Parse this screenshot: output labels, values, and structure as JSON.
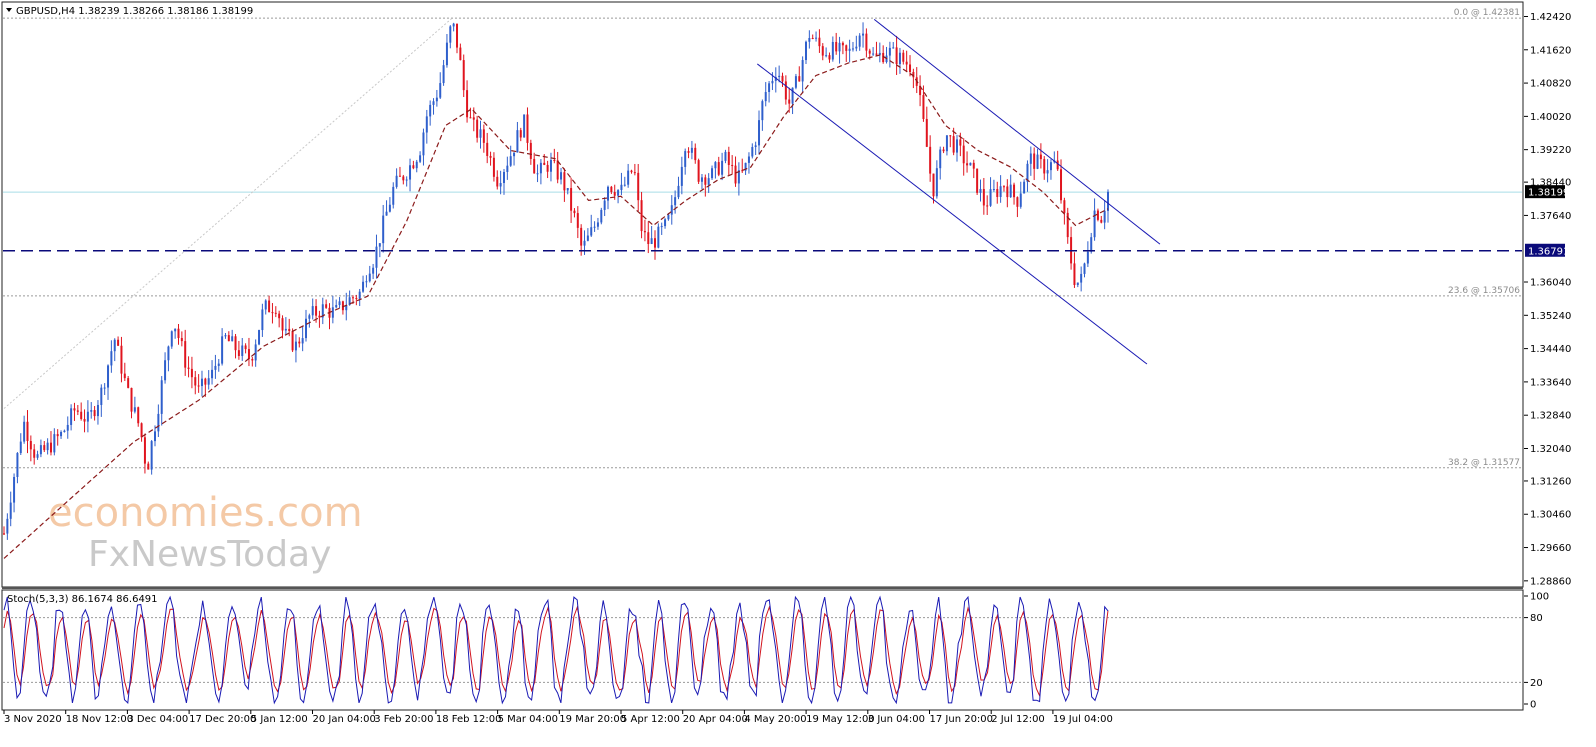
{
  "chart_data": [
    {
      "type": "candlestick",
      "title": "GBPUSD,H4  1.38239 1.38266 1.38186 1.38199",
      "symbol": "GBPUSD",
      "timeframe": "H4",
      "ohlc_last": {
        "open": 1.38239,
        "high": 1.38266,
        "low": 1.38186,
        "close": 1.38199
      },
      "current_price_label": "1.38199",
      "horizontal_level_label": "1.36791",
      "horizontal_level": 1.36791,
      "ylim": [
        1.2876,
        1.4272
      ],
      "y_ticks": [
        "1.42420",
        "1.41620",
        "1.40820",
        "1.40020",
        "1.39220",
        "1.38440",
        "1.37640",
        "1.36040",
        "1.35240",
        "1.34440",
        "1.33640",
        "1.32840",
        "1.32040",
        "1.31260",
        "1.30460",
        "1.29660",
        "1.28860"
      ],
      "x_ticks": [
        "3 Nov 2020",
        "18 Nov 12:00",
        "3 Dec 04:00",
        "17 Dec 20:00",
        "5 Jan 12:00",
        "20 Jan 04:00",
        "3 Feb 20:00",
        "18 Feb 12:00",
        "5 Mar 04:00",
        "19 Mar 20:00",
        "5 Apr 12:00",
        "20 Apr 04:00",
        "4 May 20:00",
        "19 May 12:00",
        "3 Jun 04:00",
        "17 Jun 20:00",
        "2 Jul 12:00",
        "19 Jul 04:00"
      ],
      "fibonacci": [
        {
          "label": "0.0 @ 1.42381",
          "value": 1.42381
        },
        {
          "label": "23.6 @ 1.35706",
          "value": 1.35706
        },
        {
          "label": "38.2 @ 1.31577",
          "value": 1.31577
        }
      ],
      "price_path": [
        [
          0,
          1.3
        ],
        [
          2,
          1.318
        ],
        [
          3,
          1.327
        ],
        [
          5,
          1.318
        ],
        [
          7,
          1.321
        ],
        [
          9,
          1.324
        ],
        [
          11,
          1.33
        ],
        [
          13,
          1.327
        ],
        [
          15,
          1.334
        ],
        [
          17,
          1.347
        ],
        [
          19,
          1.334
        ],
        [
          21,
          1.325
        ],
        [
          22,
          1.315
        ],
        [
          24,
          1.333
        ],
        [
          26,
          1.352
        ],
        [
          28,
          1.341
        ],
        [
          30,
          1.334
        ],
        [
          32,
          1.338
        ],
        [
          34,
          1.347
        ],
        [
          36,
          1.344
        ],
        [
          38,
          1.342
        ],
        [
          40,
          1.354
        ],
        [
          42,
          1.355
        ],
        [
          43,
          1.348
        ],
        [
          45,
          1.345
        ],
        [
          47,
          1.352
        ],
        [
          49,
          1.354
        ],
        [
          51,
          1.353
        ],
        [
          53,
          1.356
        ],
        [
          55,
          1.358
        ],
        [
          56,
          1.364
        ],
        [
          57,
          1.366
        ],
        [
          58,
          1.372
        ],
        [
          60,
          1.383
        ],
        [
          62,
          1.387
        ],
        [
          64,
          1.392
        ],
        [
          65,
          1.4
        ],
        [
          67,
          1.407
        ],
        [
          69,
          1.423
        ],
        [
          70,
          1.416
        ],
        [
          71,
          1.404
        ],
        [
          72,
          1.398
        ],
        [
          74,
          1.394
        ],
        [
          76,
          1.385
        ],
        [
          78,
          1.391
        ],
        [
          80,
          1.399
        ],
        [
          82,
          1.386
        ],
        [
          84,
          1.389
        ],
        [
          86,
          1.385
        ],
        [
          88,
          1.375
        ],
        [
          89,
          1.368
        ],
        [
          91,
          1.374
        ],
        [
          93,
          1.384
        ],
        [
          95,
          1.382
        ],
        [
          97,
          1.388
        ],
        [
          98,
          1.374
        ],
        [
          99,
          1.37
        ],
        [
          100,
          1.37
        ],
        [
          102,
          1.374
        ],
        [
          103,
          1.378
        ],
        [
          105,
          1.395
        ],
        [
          107,
          1.386
        ],
        [
          109,
          1.386
        ],
        [
          111,
          1.39
        ],
        [
          113,
          1.385
        ],
        [
          114,
          1.387
        ],
        [
          116,
          1.396
        ],
        [
          117,
          1.405
        ],
        [
          119,
          1.412
        ],
        [
          121,
          1.403
        ],
        [
          122,
          1.408
        ],
        [
          124,
          1.42
        ],
        [
          126,
          1.416
        ],
        [
          128,
          1.416
        ],
        [
          130,
          1.415
        ],
        [
          132,
          1.421
        ],
        [
          134,
          1.414
        ],
        [
          136,
          1.416
        ],
        [
          138,
          1.414
        ],
        [
          140,
          1.412
        ],
        [
          141,
          1.404
        ],
        [
          142,
          1.394
        ],
        [
          143,
          1.382
        ],
        [
          145,
          1.396
        ],
        [
          147,
          1.392
        ],
        [
          149,
          1.387
        ],
        [
          151,
          1.379
        ],
        [
          152,
          1.381
        ],
        [
          154,
          1.384
        ],
        [
          156,
          1.38
        ],
        [
          158,
          1.39
        ],
        [
          160,
          1.388
        ],
        [
          162,
          1.389
        ],
        [
          163,
          1.378
        ],
        [
          164,
          1.368
        ],
        [
          165,
          1.36
        ],
        [
          166,
          1.361
        ],
        [
          167,
          1.37
        ],
        [
          168,
          1.378
        ],
        [
          169,
          1.376
        ],
        [
          170,
          1.382
        ]
      ],
      "moving_average": [
        [
          0,
          1.294
        ],
        [
          10,
          1.308
        ],
        [
          20,
          1.322
        ],
        [
          30,
          1.332
        ],
        [
          40,
          1.345
        ],
        [
          50,
          1.353
        ],
        [
          56,
          1.357
        ],
        [
          62,
          1.375
        ],
        [
          68,
          1.398
        ],
        [
          72,
          1.402
        ],
        [
          78,
          1.392
        ],
        [
          85,
          1.39
        ],
        [
          90,
          1.38
        ],
        [
          95,
          1.381
        ],
        [
          100,
          1.374
        ],
        [
          105,
          1.38
        ],
        [
          110,
          1.385
        ],
        [
          115,
          1.388
        ],
        [
          120,
          1.4
        ],
        [
          125,
          1.41
        ],
        [
          130,
          1.413
        ],
        [
          135,
          1.415
        ],
        [
          140,
          1.41
        ],
        [
          145,
          1.398
        ],
        [
          150,
          1.392
        ],
        [
          155,
          1.388
        ],
        [
          160,
          1.382
        ],
        [
          165,
          1.374
        ],
        [
          170,
          1.378
        ]
      ],
      "channel": {
        "upper": [
          [
            134,
            1.4235
          ],
          [
            178,
            1.3695
          ]
        ],
        "lower": [
          [
            116,
            1.4128
          ],
          [
            176,
            1.3407
          ]
        ]
      }
    },
    {
      "type": "line",
      "title": "Stoch(5,3,3) 86.1674 86.6491",
      "indicator": "Stoch(5,3,3)",
      "values_label": "86.1674 86.6491",
      "main_value": 86.1674,
      "signal_value": 86.6491,
      "ylim": [
        0,
        100
      ],
      "y_ticks": [
        "100",
        "80",
        "20",
        "0"
      ],
      "levels": [
        80,
        20
      ]
    }
  ],
  "watermark": {
    "line1": "economies.com",
    "line2": "FxNewsToday"
  },
  "colors": {
    "bull_candle": "#2f5fcc",
    "bear_candle": "#e0141e",
    "moving_average": "#8b1a1a",
    "channel": "#1a1ab4",
    "horizontal_level": "#0a0a7a",
    "price_line": "#a9dde8",
    "fib_line": "#9a9a9a",
    "stoch_main": "#1a1ab4",
    "stoch_signal": "#d2141e"
  }
}
